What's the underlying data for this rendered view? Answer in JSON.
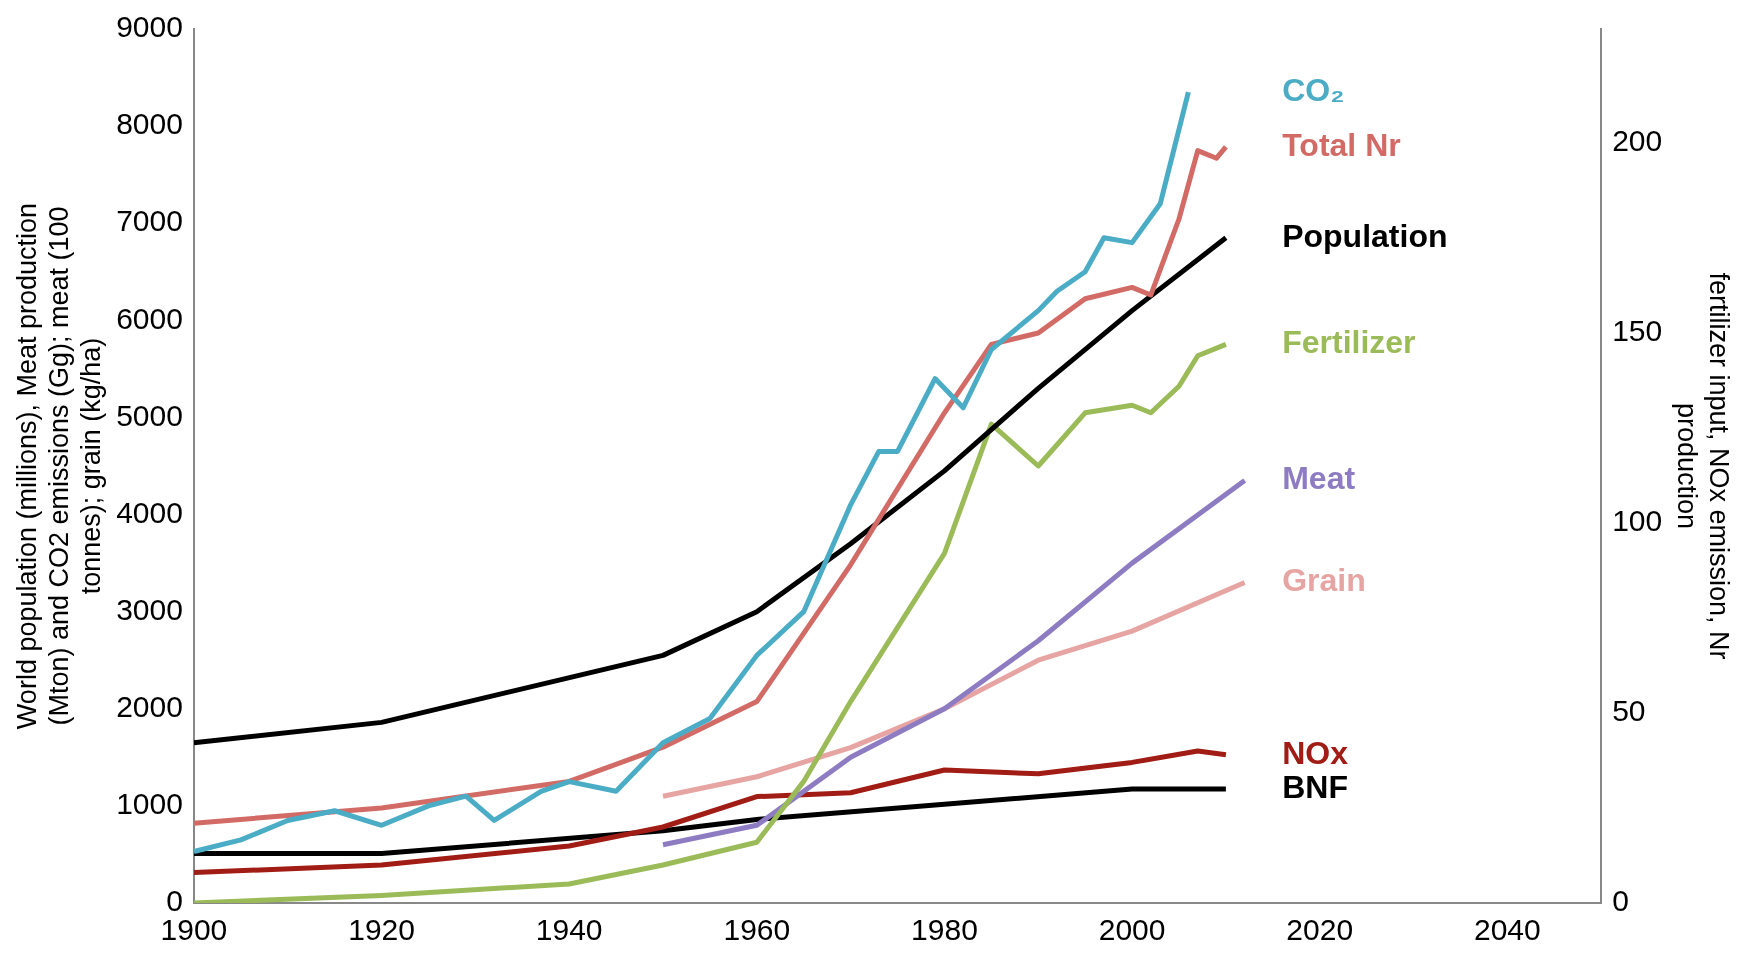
{
  "chart_data": {
    "type": "line",
    "ylabel": "World population (millions), Meat production (Mton) and CO2 emissions (Gg); meat (100 tonnes); grain (kg/ha)",
    "y2label": "fertilizer input, NOx emission, Nr production",
    "xlim": [
      1900,
      2050
    ],
    "xticks": [
      1900,
      1920,
      1940,
      1960,
      1980,
      2000,
      2020,
      2040
    ],
    "ylim": [
      0,
      9000
    ],
    "yticks": [
      0,
      1000,
      2000,
      3000,
      4000,
      5000,
      6000,
      7000,
      8000,
      9000
    ],
    "y2lim": [
      0,
      230
    ],
    "y2ticks": [
      0,
      50,
      100,
      150,
      200
    ],
    "grid": false,
    "legend": false,
    "marker": "none",
    "line_style": "solid",
    "series": [
      {
        "name": "CO₂",
        "color": "#4bacc6",
        "x": [
          1900,
          1905,
          1910,
          1915,
          1920,
          1925,
          1929,
          1932,
          1937,
          1940,
          1945,
          1950,
          1955,
          1960,
          1965,
          1970,
          1973,
          1975,
          1979,
          1982,
          1985,
          1990,
          1992,
          1995,
          1997,
          2000,
          2003,
          2006
        ],
        "values": [
          530,
          650,
          850,
          950,
          800,
          1000,
          1100,
          850,
          1150,
          1250,
          1150,
          1650,
          1900,
          2550,
          3000,
          4100,
          4650,
          4650,
          5400,
          5100,
          5700,
          6100,
          6300,
          6500,
          6850,
          6800,
          7200,
          8350
        ]
      },
      {
        "name": "Total Nr",
        "color": "#d26b66",
        "axis": "y2",
        "x": [
          1900,
          1920,
          1940,
          1950,
          1960,
          1970,
          1980,
          1985,
          1990,
          1995,
          2000,
          2002,
          2005,
          2007,
          2009,
          2010
        ],
        "values": [
          21,
          25,
          32,
          41,
          53,
          89,
          129,
          147,
          150,
          159,
          162,
          160,
          180,
          198,
          196,
          199
        ]
      },
      {
        "name": "Population",
        "color": "#000000",
        "x": [
          1900,
          1920,
          1950,
          1960,
          1970,
          1980,
          1990,
          2000,
          2010
        ],
        "values": [
          1650,
          1860,
          2550,
          3000,
          3700,
          4450,
          5300,
          6100,
          6850
        ]
      },
      {
        "name": "Fertilizer",
        "color": "#9bbb59",
        "axis": "y2",
        "x": [
          1900,
          1920,
          1940,
          1950,
          1960,
          1965,
          1970,
          1980,
          1985,
          1990,
          1995,
          2000,
          2002,
          2005,
          2007,
          2010
        ],
        "values": [
          0,
          2,
          5,
          10,
          16,
          32,
          53,
          92,
          126,
          115,
          129,
          131,
          129,
          136,
          144,
          147
        ]
      },
      {
        "name": "Meat",
        "color": "#8e7cc3",
        "x": [
          1950,
          1960,
          1970,
          1980,
          1990,
          2000,
          2012
        ],
        "values": [
          600,
          800,
          1500,
          2000,
          2700,
          3500,
          4350
        ]
      },
      {
        "name": "Grain",
        "color": "#e6a5a2",
        "x": [
          1950,
          1960,
          1970,
          1980,
          1990,
          2000,
          2012
        ],
        "values": [
          1100,
          1300,
          1600,
          2000,
          2500,
          2800,
          3300
        ]
      },
      {
        "name": "NOx",
        "color": "#a01c14",
        "axis": "y2",
        "x": [
          1900,
          1920,
          1940,
          1950,
          1960,
          1970,
          1980,
          1990,
          2000,
          2007,
          2010
        ],
        "values": [
          8,
          10,
          15,
          20,
          28,
          29,
          35,
          34,
          37,
          40,
          39
        ]
      },
      {
        "name": "BNF",
        "color": "#000000",
        "axis": "y2",
        "x": [
          1900,
          1920,
          1950,
          1960,
          1980,
          2000,
          2010
        ],
        "values": [
          13,
          13,
          19,
          22,
          26,
          30,
          30
        ]
      }
    ]
  }
}
